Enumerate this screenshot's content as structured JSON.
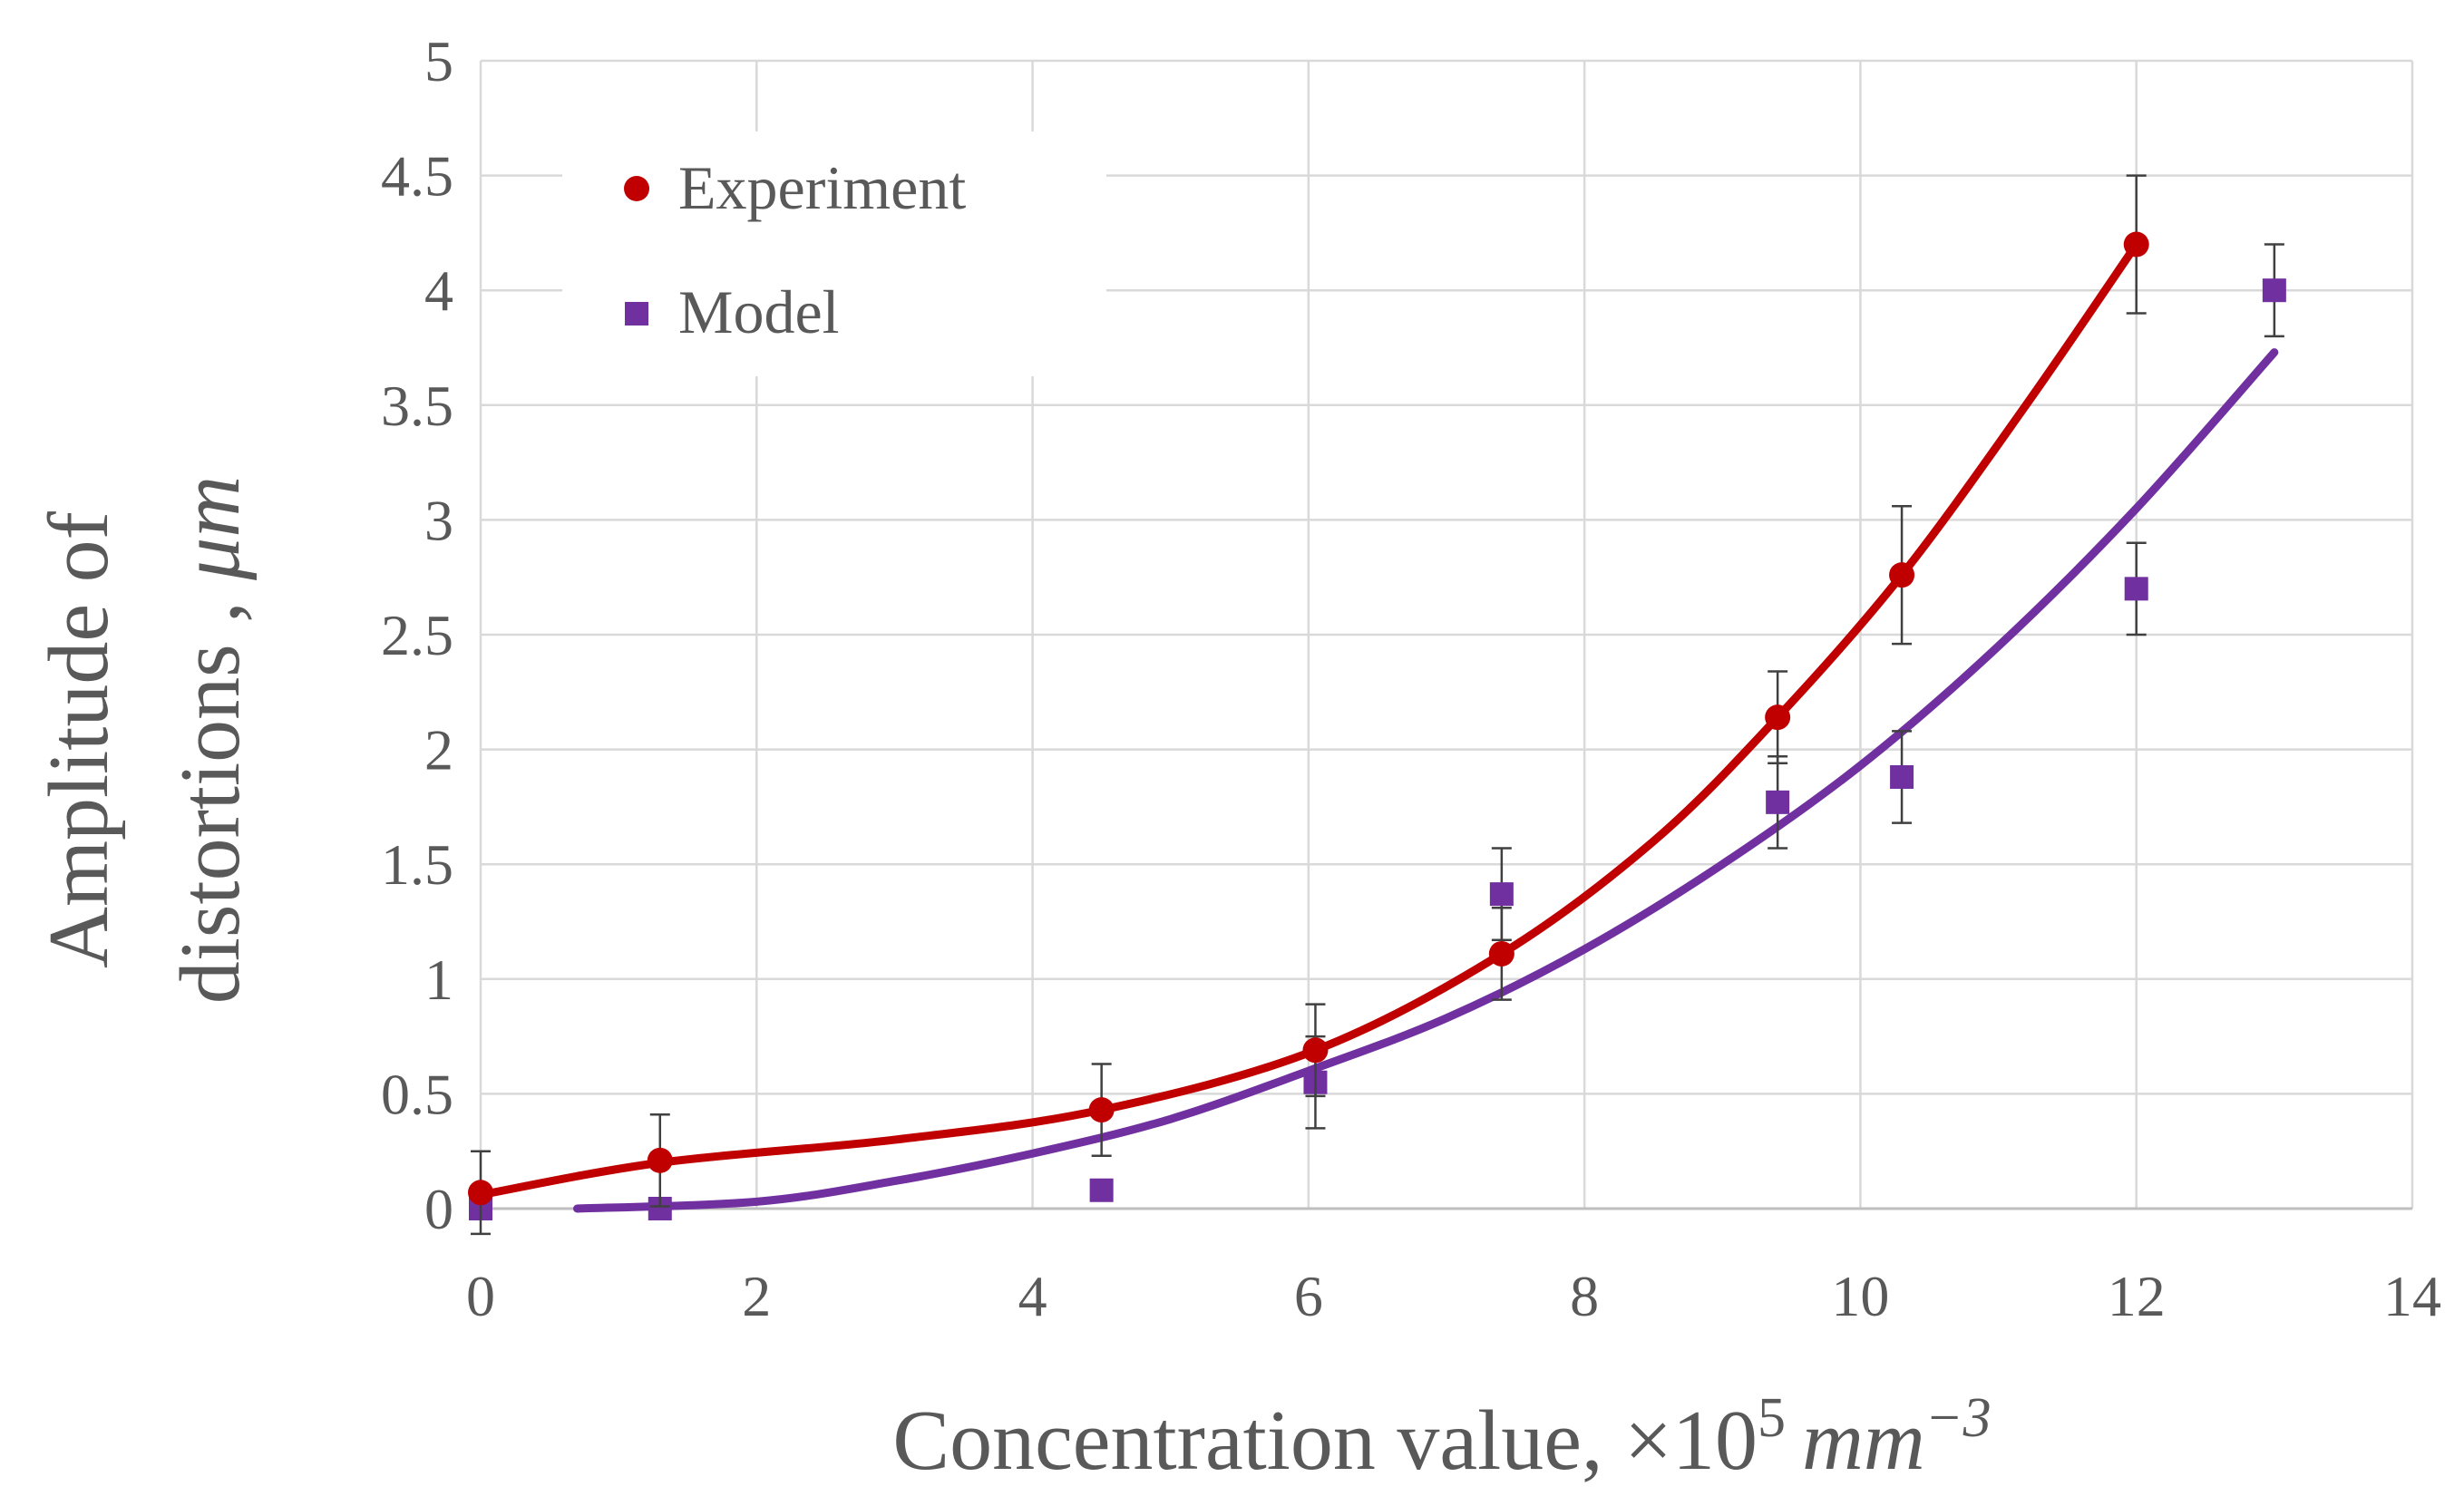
{
  "chart_data": {
    "type": "scatter",
    "title": "",
    "xlabel": {
      "prefix": "Concentration value, ×10",
      "superscript": "5",
      "unit": "mm",
      "unit_superscript": "−3"
    },
    "ylabel": {
      "line1": "Amplitude of",
      "line2_prefix": "distortions , ",
      "line2_unit": "μm"
    },
    "xlim": [
      0,
      14
    ],
    "ylim": [
      0,
      5
    ],
    "x_ticks": [
      0,
      2,
      4,
      6,
      8,
      10,
      12,
      14
    ],
    "x_tick_labels": [
      "0",
      "2",
      "4",
      "6",
      "8",
      "10",
      "12",
      "14"
    ],
    "y_ticks": [
      0,
      0.5,
      1,
      1.5,
      2,
      2.5,
      3,
      3.5,
      4,
      4.5,
      5
    ],
    "y_tick_labels": [
      "0",
      "0.5",
      "1",
      "1.5",
      "2",
      "2.5",
      "3",
      "3.5",
      "4",
      "4.5",
      "5"
    ],
    "grid": true,
    "legend_position": "top-left",
    "series": [
      {
        "name": "Experiment",
        "color": "#C00000",
        "marker": "circle",
        "points": [
          {
            "x": 0,
            "y": 0.07,
            "err": 0.18
          },
          {
            "x": 1.3,
            "y": 0.21,
            "err": 0.2
          },
          {
            "x": 4.5,
            "y": 0.43,
            "err": 0.2
          },
          {
            "x": 6.05,
            "y": 0.69,
            "err": 0.2
          },
          {
            "x": 7.4,
            "y": 1.11,
            "err": 0.2
          },
          {
            "x": 9.4,
            "y": 2.14,
            "err": 0.2
          },
          {
            "x": 10.3,
            "y": 2.76,
            "err": 0.3
          },
          {
            "x": 12,
            "y": 4.2,
            "err": 0.3
          }
        ],
        "trend": [
          {
            "x": 0,
            "y": 0.06
          },
          {
            "x": 1.3,
            "y": 0.2
          },
          {
            "x": 3,
            "y": 0.3
          },
          {
            "x": 4.5,
            "y": 0.43
          },
          {
            "x": 6.05,
            "y": 0.69
          },
          {
            "x": 7.4,
            "y": 1.11
          },
          {
            "x": 8.5,
            "y": 1.6
          },
          {
            "x": 9.4,
            "y": 2.14
          },
          {
            "x": 10.3,
            "y": 2.76
          },
          {
            "x": 11.2,
            "y": 3.5
          },
          {
            "x": 12,
            "y": 4.2
          }
        ]
      },
      {
        "name": "Model",
        "color": "#7030A0",
        "marker": "square",
        "points": [
          {
            "x": 0,
            "y": 0.0,
            "err": 0
          },
          {
            "x": 1.3,
            "y": 0.0,
            "err": 0
          },
          {
            "x": 4.5,
            "y": 0.08,
            "err": 0
          },
          {
            "x": 6.05,
            "y": 0.55,
            "err": 0.2
          },
          {
            "x": 7.4,
            "y": 1.37,
            "err": 0.2
          },
          {
            "x": 9.4,
            "y": 1.77,
            "err": 0.2
          },
          {
            "x": 10.3,
            "y": 1.88,
            "err": 0.2
          },
          {
            "x": 12,
            "y": 2.7,
            "err": 0.2
          },
          {
            "x": 13,
            "y": 4.0,
            "err": 0.2
          }
        ],
        "trend": [
          {
            "x": 0.7,
            "y": 0.0
          },
          {
            "x": 2,
            "y": 0.03
          },
          {
            "x": 3,
            "y": 0.12
          },
          {
            "x": 4,
            "y": 0.24
          },
          {
            "x": 5,
            "y": 0.39
          },
          {
            "x": 6,
            "y": 0.6
          },
          {
            "x": 7,
            "y": 0.83
          },
          {
            "x": 8,
            "y": 1.13
          },
          {
            "x": 9,
            "y": 1.5
          },
          {
            "x": 10,
            "y": 1.93
          },
          {
            "x": 11,
            "y": 2.45
          },
          {
            "x": 12,
            "y": 3.05
          },
          {
            "x": 13,
            "y": 3.73
          }
        ]
      }
    ]
  }
}
